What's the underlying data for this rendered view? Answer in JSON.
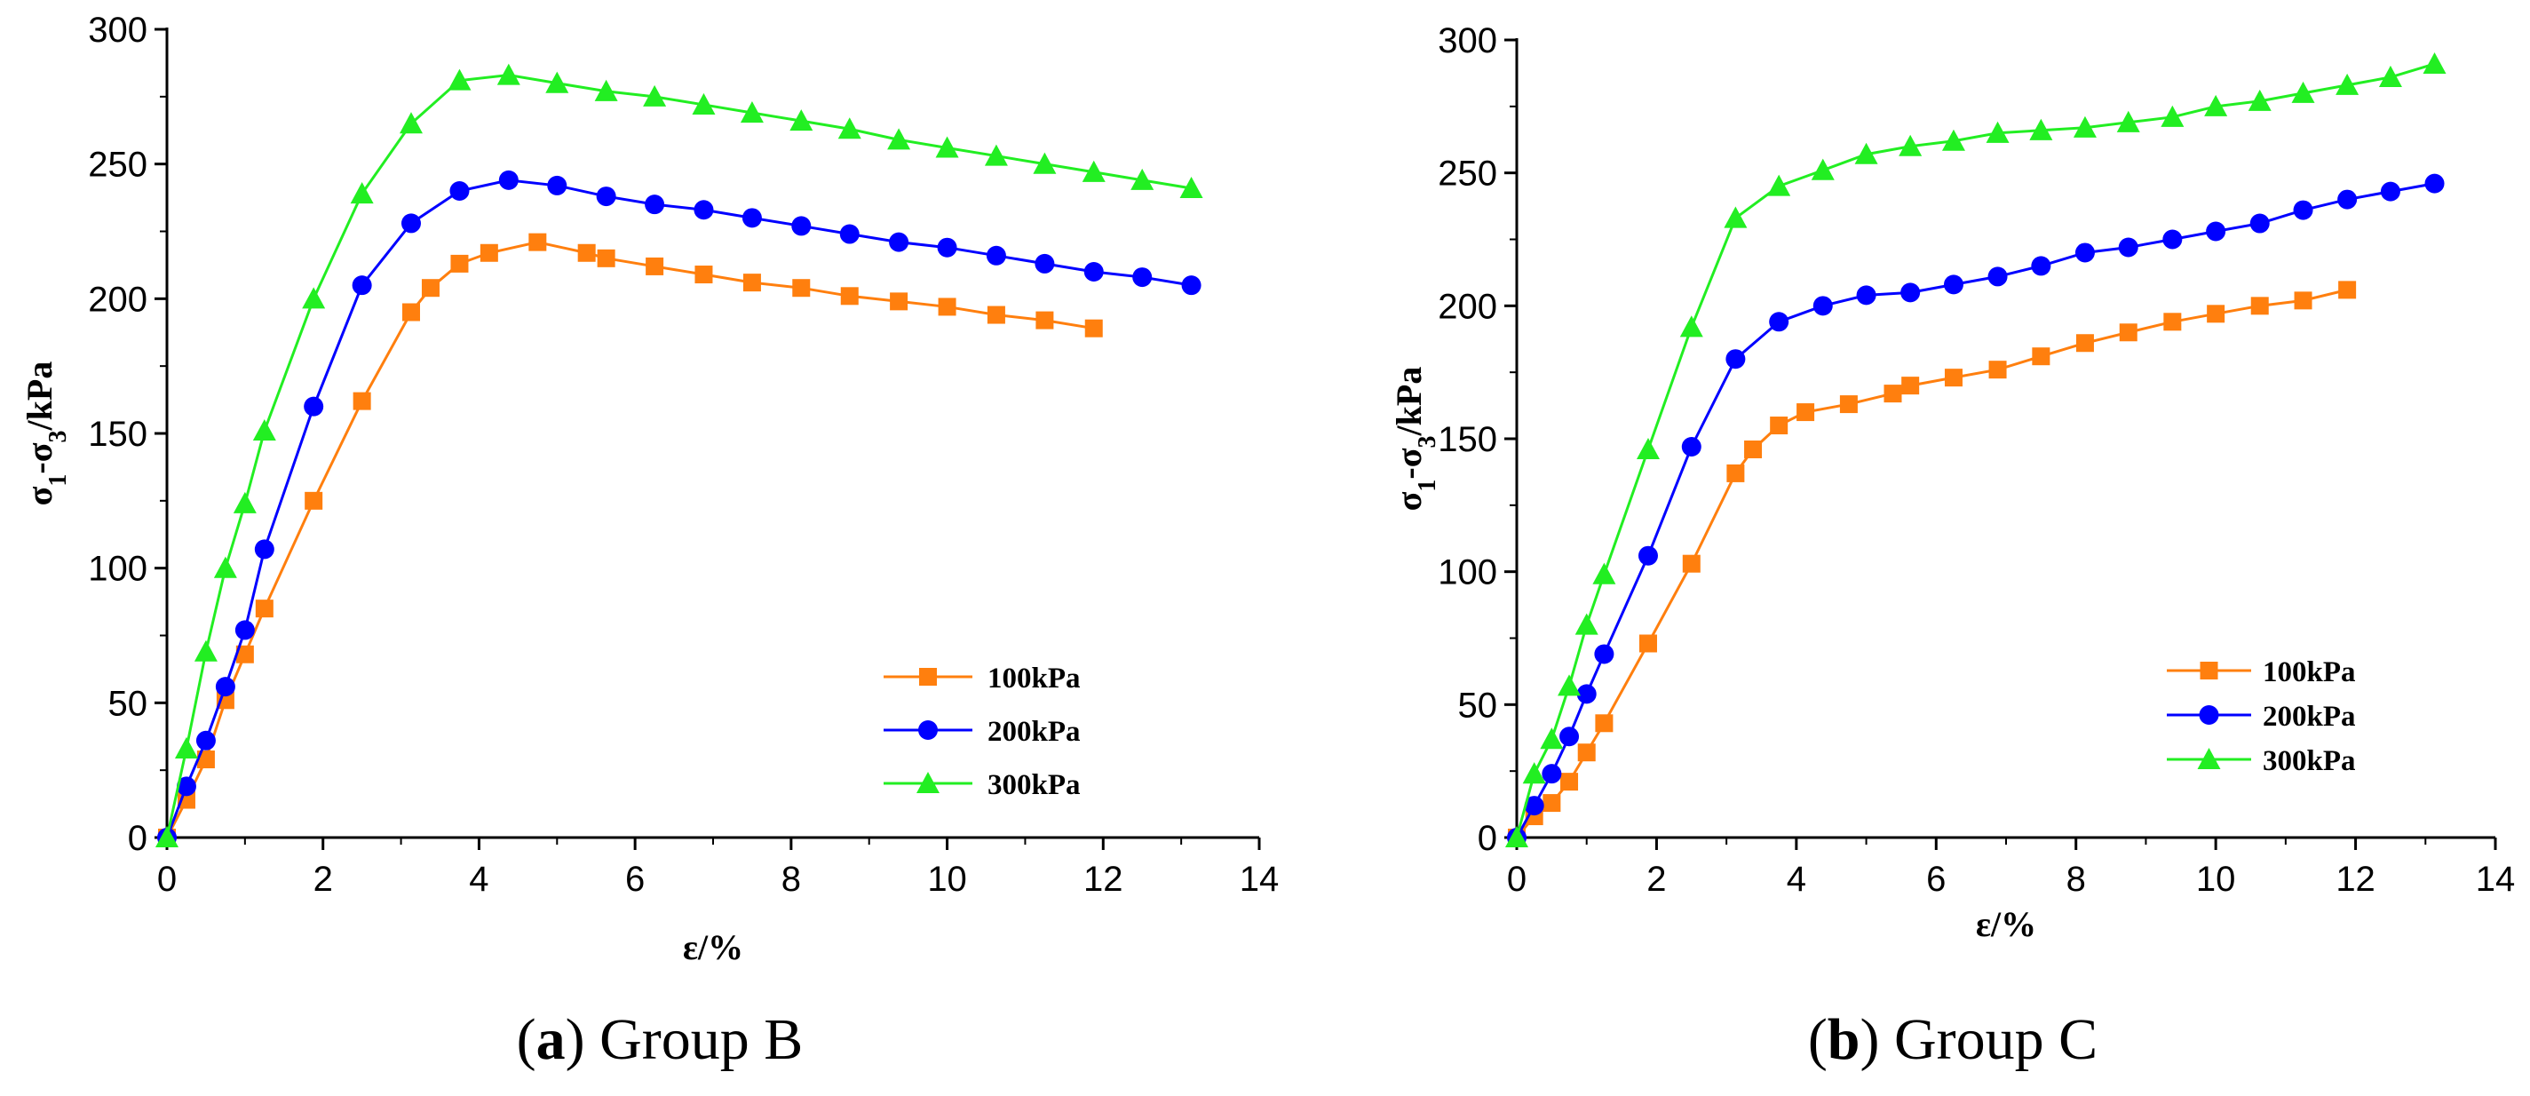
{
  "chart_data": [
    {
      "type": "line",
      "caption_letter": "a",
      "caption_text": "Group B",
      "xlabel": "ε/%",
      "ylabel": "σ1-σ3/kPa",
      "ylabel_parts": {
        "sigma": "σ",
        "sub1": "1",
        "minus": "-",
        "sub3": "3",
        "unit": "/kPa"
      },
      "xlim": [
        0,
        14
      ],
      "ylim": [
        0,
        300
      ],
      "xticks": [
        0,
        2,
        4,
        6,
        8,
        10,
        12,
        14
      ],
      "yticks": [
        0,
        50,
        100,
        150,
        200,
        250,
        300
      ],
      "legend_position": "bottom-right",
      "series": [
        {
          "name": "100kPa",
          "color": "#ff7f0e",
          "marker": "square",
          "x": [
            0,
            0.25,
            0.5,
            0.75,
            1.0,
            1.25,
            1.88,
            2.5,
            3.13,
            3.38,
            3.75,
            4.13,
            4.75,
            5.38,
            5.63,
            6.25,
            6.88,
            7.5,
            8.13,
            8.75,
            9.38,
            10.0,
            10.63,
            11.25,
            11.88
          ],
          "y": [
            0,
            14,
            29,
            51,
            68,
            85,
            125,
            162,
            195,
            204,
            213,
            217,
            221,
            217,
            215,
            212,
            209,
            206,
            204,
            201,
            199,
            197,
            194,
            192,
            189
          ]
        },
        {
          "name": "200kPa",
          "color": "#0000ff",
          "marker": "circle",
          "x": [
            0,
            0.25,
            0.5,
            0.75,
            1.0,
            1.25,
            1.88,
            2.5,
            3.13,
            3.75,
            4.38,
            5.0,
            5.63,
            6.25,
            6.88,
            7.5,
            8.13,
            8.75,
            9.38,
            10.0,
            10.63,
            11.25,
            11.88,
            12.5,
            13.13
          ],
          "y": [
            0,
            19,
            36,
            56,
            77,
            107,
            160,
            205,
            228,
            240,
            244,
            242,
            238,
            235,
            233,
            230,
            227,
            224,
            221,
            219,
            216,
            213,
            210,
            208,
            205
          ]
        },
        {
          "name": "300kPa",
          "color": "#22ee22",
          "marker": "triangle",
          "x": [
            0,
            0.25,
            0.5,
            0.75,
            1.0,
            1.25,
            1.88,
            2.5,
            3.13,
            3.75,
            4.38,
            5.0,
            5.63,
            6.25,
            6.88,
            7.5,
            8.13,
            8.75,
            9.38,
            10.0,
            10.63,
            11.25,
            11.88,
            12.5,
            13.13
          ],
          "y": [
            0,
            33,
            69,
            100,
            124,
            151,
            200,
            239,
            265,
            281,
            283,
            280,
            277,
            275,
            272,
            269,
            266,
            263,
            259,
            256,
            253,
            250,
            247,
            244,
            241
          ]
        }
      ]
    },
    {
      "type": "line",
      "caption_letter": "b",
      "caption_text": "Group C",
      "xlabel": "ε/%",
      "ylabel": "σ1-σ3/kPa",
      "ylabel_parts": {
        "sigma": "σ",
        "sub1": "1",
        "minus": "-",
        "sub3": "3",
        "unit": "/kPa"
      },
      "xlim": [
        0,
        14
      ],
      "ylim": [
        0,
        300
      ],
      "xticks": [
        0,
        2,
        4,
        6,
        8,
        10,
        12,
        14
      ],
      "yticks": [
        0,
        50,
        100,
        150,
        200,
        250,
        300
      ],
      "legend_position": "bottom-right",
      "series": [
        {
          "name": "100kPa",
          "color": "#ff7f0e",
          "marker": "square",
          "x": [
            0,
            0.25,
            0.5,
            0.75,
            1.0,
            1.25,
            1.88,
            2.5,
            3.13,
            3.38,
            3.75,
            4.13,
            4.75,
            5.38,
            5.63,
            6.25,
            6.88,
            7.5,
            8.13,
            8.75,
            9.38,
            10.0,
            10.63,
            11.25,
            11.88
          ],
          "y": [
            0,
            8,
            13,
            21,
            32,
            43,
            73,
            103,
            137,
            146,
            155,
            160,
            163,
            167,
            170,
            173,
            176,
            181,
            186,
            190,
            194,
            197,
            200,
            202,
            206
          ]
        },
        {
          "name": "200kPa",
          "color": "#0000ff",
          "marker": "circle",
          "x": [
            0,
            0.25,
            0.5,
            0.75,
            1.0,
            1.25,
            1.88,
            2.5,
            3.13,
            3.75,
            4.38,
            5.0,
            5.63,
            6.25,
            6.88,
            7.5,
            8.13,
            8.75,
            9.38,
            10.0,
            10.63,
            11.25,
            11.88,
            12.5,
            13.13
          ],
          "y": [
            0,
            12,
            24,
            38,
            54,
            69,
            106,
            147,
            180,
            194,
            200,
            204,
            205,
            208,
            211,
            215,
            220,
            222,
            225,
            228,
            231,
            236,
            240,
            243,
            246
          ]
        },
        {
          "name": "300kPa",
          "color": "#22ee22",
          "marker": "triangle",
          "x": [
            0,
            0.25,
            0.5,
            0.75,
            1.0,
            1.25,
            1.88,
            2.5,
            3.13,
            3.75,
            4.38,
            5.0,
            5.63,
            6.25,
            6.88,
            7.5,
            8.13,
            8.75,
            9.38,
            10.0,
            10.63,
            11.25,
            11.88,
            12.5,
            13.13
          ],
          "y": [
            0,
            24,
            37,
            57,
            80,
            99,
            146,
            192,
            233,
            245,
            251,
            257,
            260,
            262,
            265,
            266,
            267,
            269,
            271,
            275,
            277,
            280,
            283,
            286,
            291
          ]
        }
      ]
    }
  ]
}
